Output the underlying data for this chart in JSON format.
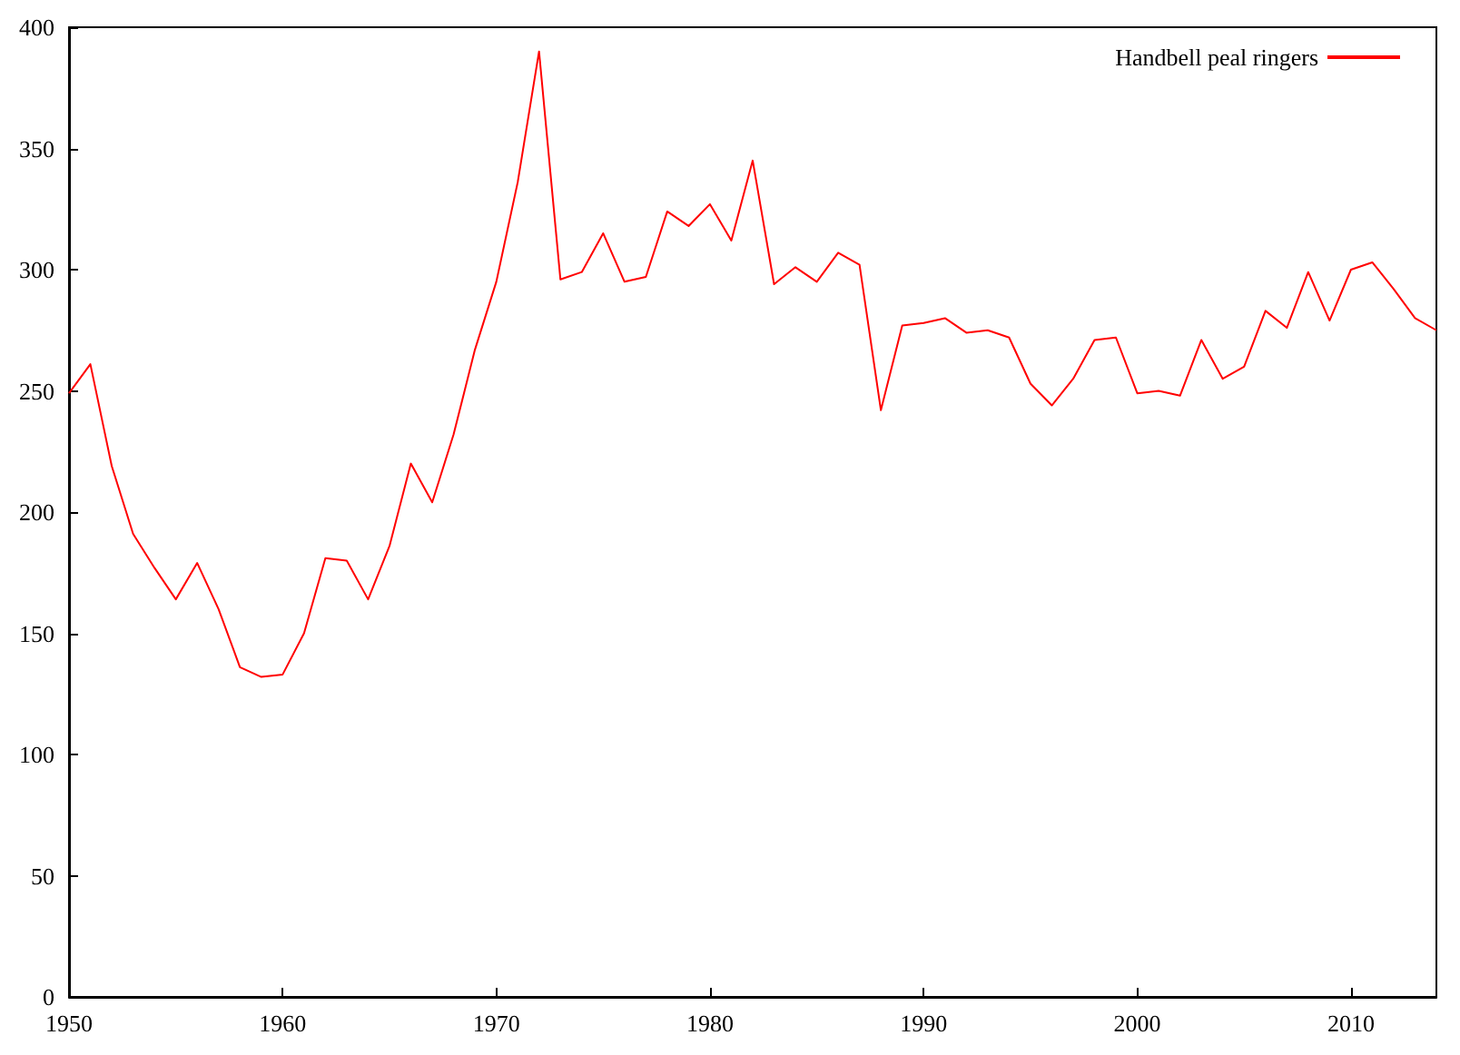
{
  "chart_data": {
    "type": "line",
    "x": [
      1950,
      1951,
      1952,
      1953,
      1954,
      1955,
      1956,
      1957,
      1958,
      1959,
      1960,
      1961,
      1962,
      1963,
      1964,
      1965,
      1966,
      1967,
      1968,
      1969,
      1970,
      1971,
      1972,
      1973,
      1974,
      1975,
      1976,
      1977,
      1978,
      1979,
      1980,
      1981,
      1982,
      1983,
      1984,
      1985,
      1986,
      1987,
      1988,
      1989,
      1990,
      1991,
      1992,
      1993,
      1994,
      1995,
      1996,
      1997,
      1998,
      1999,
      2000,
      2001,
      2002,
      2003,
      2004,
      2005,
      2006,
      2007,
      2008,
      2009,
      2010,
      2011,
      2012,
      2013,
      2014
    ],
    "series": [
      {
        "name": "Handbell peal ringers",
        "color": "#ff0000",
        "values": [
          249,
          261,
          219,
          191,
          177,
          164,
          179,
          160,
          136,
          132,
          133,
          150,
          181,
          180,
          164,
          186,
          220,
          204,
          232,
          267,
          295,
          336,
          390,
          296,
          299,
          315,
          295,
          297,
          324,
          318,
          327,
          312,
          345,
          294,
          301,
          295,
          307,
          302,
          242,
          277,
          278,
          280,
          274,
          275,
          272,
          253,
          244,
          255,
          271,
          272,
          249,
          250,
          248,
          271,
          255,
          260,
          283,
          276,
          299,
          279,
          300,
          303,
          292,
          280,
          275
        ]
      }
    ],
    "xlim": [
      1950,
      2014
    ],
    "xticks": [
      1950,
      1960,
      1970,
      1980,
      1990,
      2000,
      2010
    ],
    "ylim": [
      0,
      400
    ],
    "yticks": [
      0,
      50,
      100,
      150,
      200,
      250,
      300,
      350,
      400
    ],
    "grid": false,
    "legend": "top right",
    "marker": "none",
    "line_style": "solid"
  }
}
